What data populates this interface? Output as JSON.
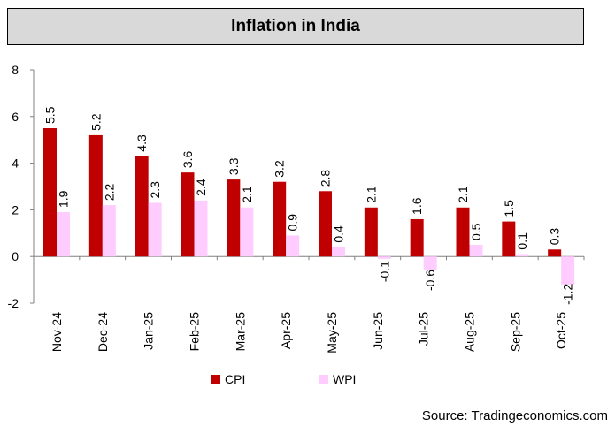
{
  "chart_data": {
    "type": "bar",
    "title": "Inflation in India",
    "categories": [
      "Nov-24",
      "Dec-24",
      "Jan-25",
      "Feb-25",
      "Mar-25",
      "Apr-25",
      "May-25",
      "Jun-25",
      "Jul-25",
      "Aug-25",
      "Sep-25",
      "Oct-25"
    ],
    "series": [
      {
        "name": "CPI",
        "color": "#c00000",
        "values": [
          5.5,
          5.2,
          4.3,
          3.6,
          3.3,
          3.2,
          2.8,
          2.1,
          1.6,
          2.1,
          1.5,
          0.3
        ],
        "labels": [
          "5.5",
          "5.2",
          "4.3",
          "3.6",
          "3.3",
          "3.2",
          "2.8",
          "2.1",
          "1.6",
          "2.1",
          "1.5",
          "0.3"
        ]
      },
      {
        "name": "WPI",
        "color": "#ffccff",
        "values": [
          1.9,
          2.2,
          2.3,
          2.4,
          2.1,
          0.9,
          0.4,
          -0.1,
          -0.6,
          0.5,
          0.1,
          -1.2
        ],
        "labels": [
          "1.9",
          "2.2",
          "2.3",
          "2.4",
          "2.1",
          "0.9",
          "0.4",
          "-0.1",
          "-0.6",
          "0.5",
          "0.1",
          "-1.2"
        ]
      }
    ],
    "ylim": [
      -2,
      8
    ],
    "yticks": [
      -2,
      0,
      2,
      4,
      6,
      8
    ],
    "ytick_labels": [
      "-2",
      "0",
      "2",
      "4",
      "6",
      "8"
    ],
    "xlabel": "",
    "ylabel": "",
    "grid": false,
    "legend_position": "bottom"
  },
  "legend": {
    "cpi": "CPI",
    "wpi": "WPI"
  },
  "source": "Source: Tradingeconomics.com"
}
